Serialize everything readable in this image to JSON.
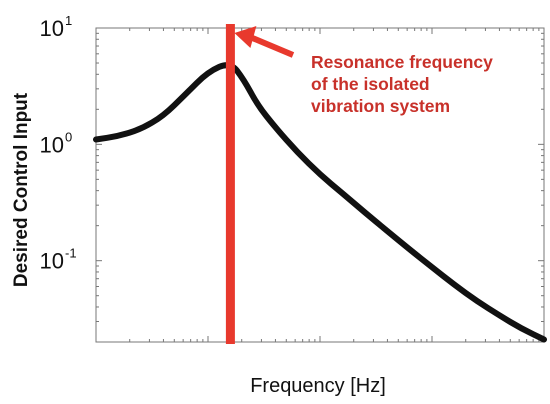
{
  "chart_data": {
    "type": "line",
    "title": "",
    "xlabel": "Frequency [Hz]",
    "ylabel": "Desired Control Input",
    "y_scale": "log",
    "x_scale": "log",
    "ylim": [
      0.02,
      10
    ],
    "y_ticks": [
      {
        "value": 10,
        "base": "10",
        "exp": "1"
      },
      {
        "value": 1,
        "base": "10",
        "exp": "0"
      },
      {
        "value": 0.1,
        "base": "10",
        "exp": "-1"
      }
    ],
    "x_tick_labels_shown": false,
    "grid": false,
    "legend": "none",
    "series": [
      {
        "color": "#111111",
        "x_rel": [
          0.0,
          0.05,
          0.1,
          0.15,
          0.2,
          0.25,
          0.3,
          0.33,
          0.36,
          0.4,
          0.45,
          0.5,
          0.55,
          0.6,
          0.65,
          0.7,
          0.75,
          0.8,
          0.85,
          0.9,
          0.95,
          1.0
        ],
        "values": [
          1.1,
          1.18,
          1.35,
          1.75,
          2.7,
          4.2,
          5.1,
          3.6,
          2.2,
          1.4,
          0.85,
          0.55,
          0.38,
          0.26,
          0.18,
          0.125,
          0.088,
          0.062,
          0.045,
          0.034,
          0.026,
          0.021
        ]
      }
    ],
    "marker_line": {
      "color": "#e8392d",
      "x_rel": 0.3
    },
    "annotation": {
      "lines": [
        "Resonance frequency",
        "of the isolated",
        "vibration system"
      ],
      "color": "#c8312a",
      "arrow_color": "#e8392d"
    }
  }
}
